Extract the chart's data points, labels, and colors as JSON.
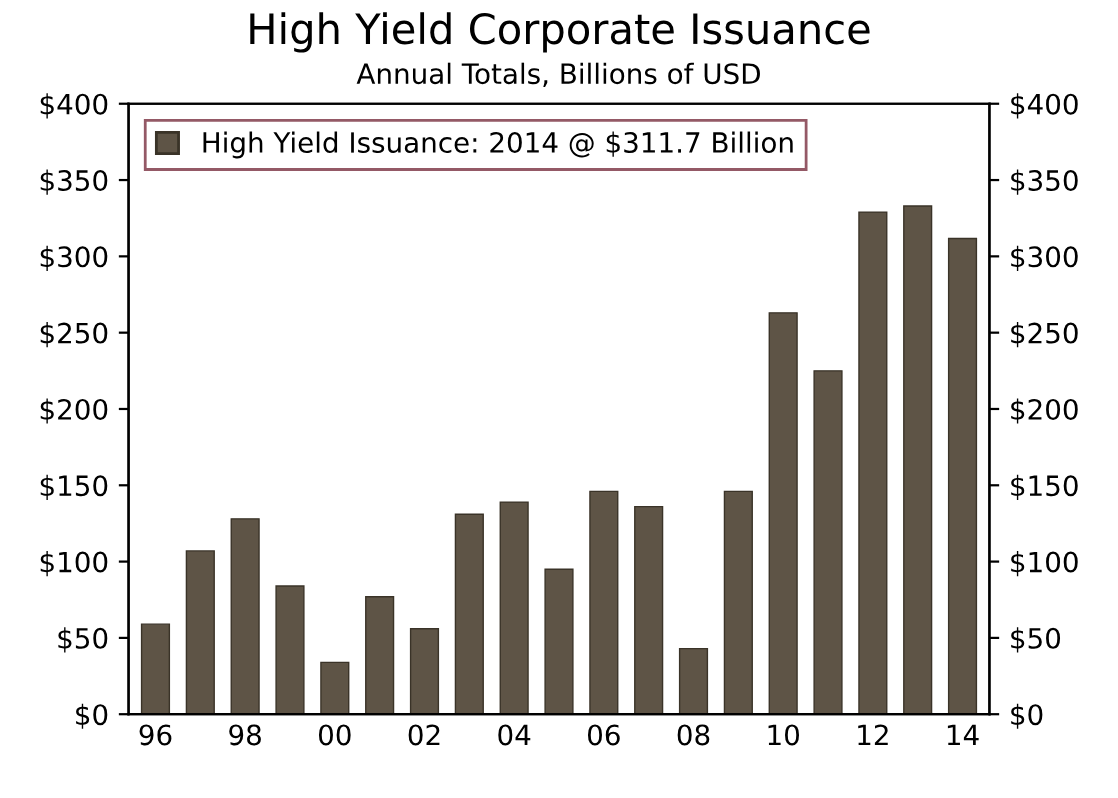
{
  "chart_data": {
    "type": "bar",
    "title": "High Yield Corporate Issuance",
    "subtitle": "Annual Totals, Billions of USD",
    "categories": [
      "96",
      null,
      "98",
      null,
      "00",
      null,
      "02",
      null,
      "04",
      null,
      "06",
      null,
      "08",
      null,
      "10",
      null,
      "12",
      null,
      "14"
    ],
    "series": [
      {
        "name": "High Yield Issuance: 2014 @ $311.7 Billion",
        "color": "#5e5446",
        "values": [
          59,
          107,
          128,
          84,
          34,
          77,
          56,
          131,
          139,
          95,
          146,
          136,
          43,
          146,
          263,
          225,
          329,
          333,
          311.7
        ]
      }
    ],
    "ylim": [
      0,
      400
    ],
    "yticks": [
      {
        "value": 0,
        "label": "$0"
      },
      {
        "value": 50,
        "label": "$50"
      },
      {
        "value": 100,
        "label": "$100"
      },
      {
        "value": 150,
        "label": "$150"
      },
      {
        "value": 200,
        "label": "$200"
      },
      {
        "value": 250,
        "label": "$250"
      },
      {
        "value": 300,
        "label": "$300"
      },
      {
        "value": 350,
        "label": "$350"
      },
      {
        "value": 400,
        "label": "$400"
      }
    ],
    "y2lim": [
      0,
      400
    ],
    "y2ticks": [
      {
        "value": 0,
        "label": "$0"
      },
      {
        "value": 50,
        "label": "$50"
      },
      {
        "value": 100,
        "label": "$100"
      },
      {
        "value": 150,
        "label": "$150"
      },
      {
        "value": 200,
        "label": "$200"
      },
      {
        "value": 250,
        "label": "$250"
      },
      {
        "value": 300,
        "label": "$300"
      },
      {
        "value": 350,
        "label": "$350"
      },
      {
        "value": 400,
        "label": "$400"
      }
    ],
    "legend": "top left",
    "grid": false
  }
}
